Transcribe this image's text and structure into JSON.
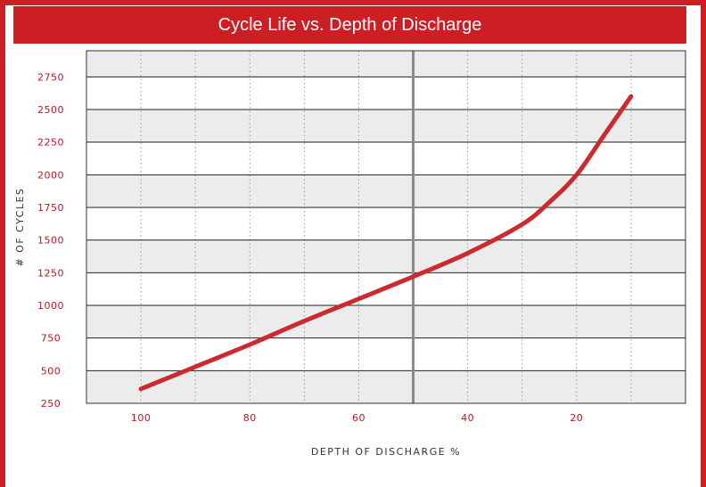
{
  "chart_data": {
    "type": "line",
    "title": "Cycle Life vs. Depth of Discharge",
    "xlabel": "DEPTH OF DISCHARGE %",
    "ylabel": "# OF CYCLES",
    "xlim": [
      110,
      0
    ],
    "ylim": [
      250,
      2950
    ],
    "x_ticks": [
      100,
      80,
      60,
      40,
      20
    ],
    "y_ticks": [
      250,
      500,
      750,
      1000,
      1250,
      1500,
      1750,
      2000,
      2250,
      2500,
      2750
    ],
    "reference_line_x": 50,
    "grid": true,
    "series": [
      {
        "x": [
          100,
          90,
          80,
          70,
          60,
          50,
          40,
          30,
          25,
          20,
          15,
          10
        ],
        "y": [
          360,
          530,
          700,
          880,
          1050,
          1220,
          1400,
          1620,
          1790,
          2000,
          2300,
          2600
        ]
      }
    ],
    "colors": {
      "line": "#cc2a2f",
      "brand": "#cc1f24",
      "band": "#ececec",
      "gridline": "#222222",
      "reference": "#8a8a8a"
    }
  }
}
